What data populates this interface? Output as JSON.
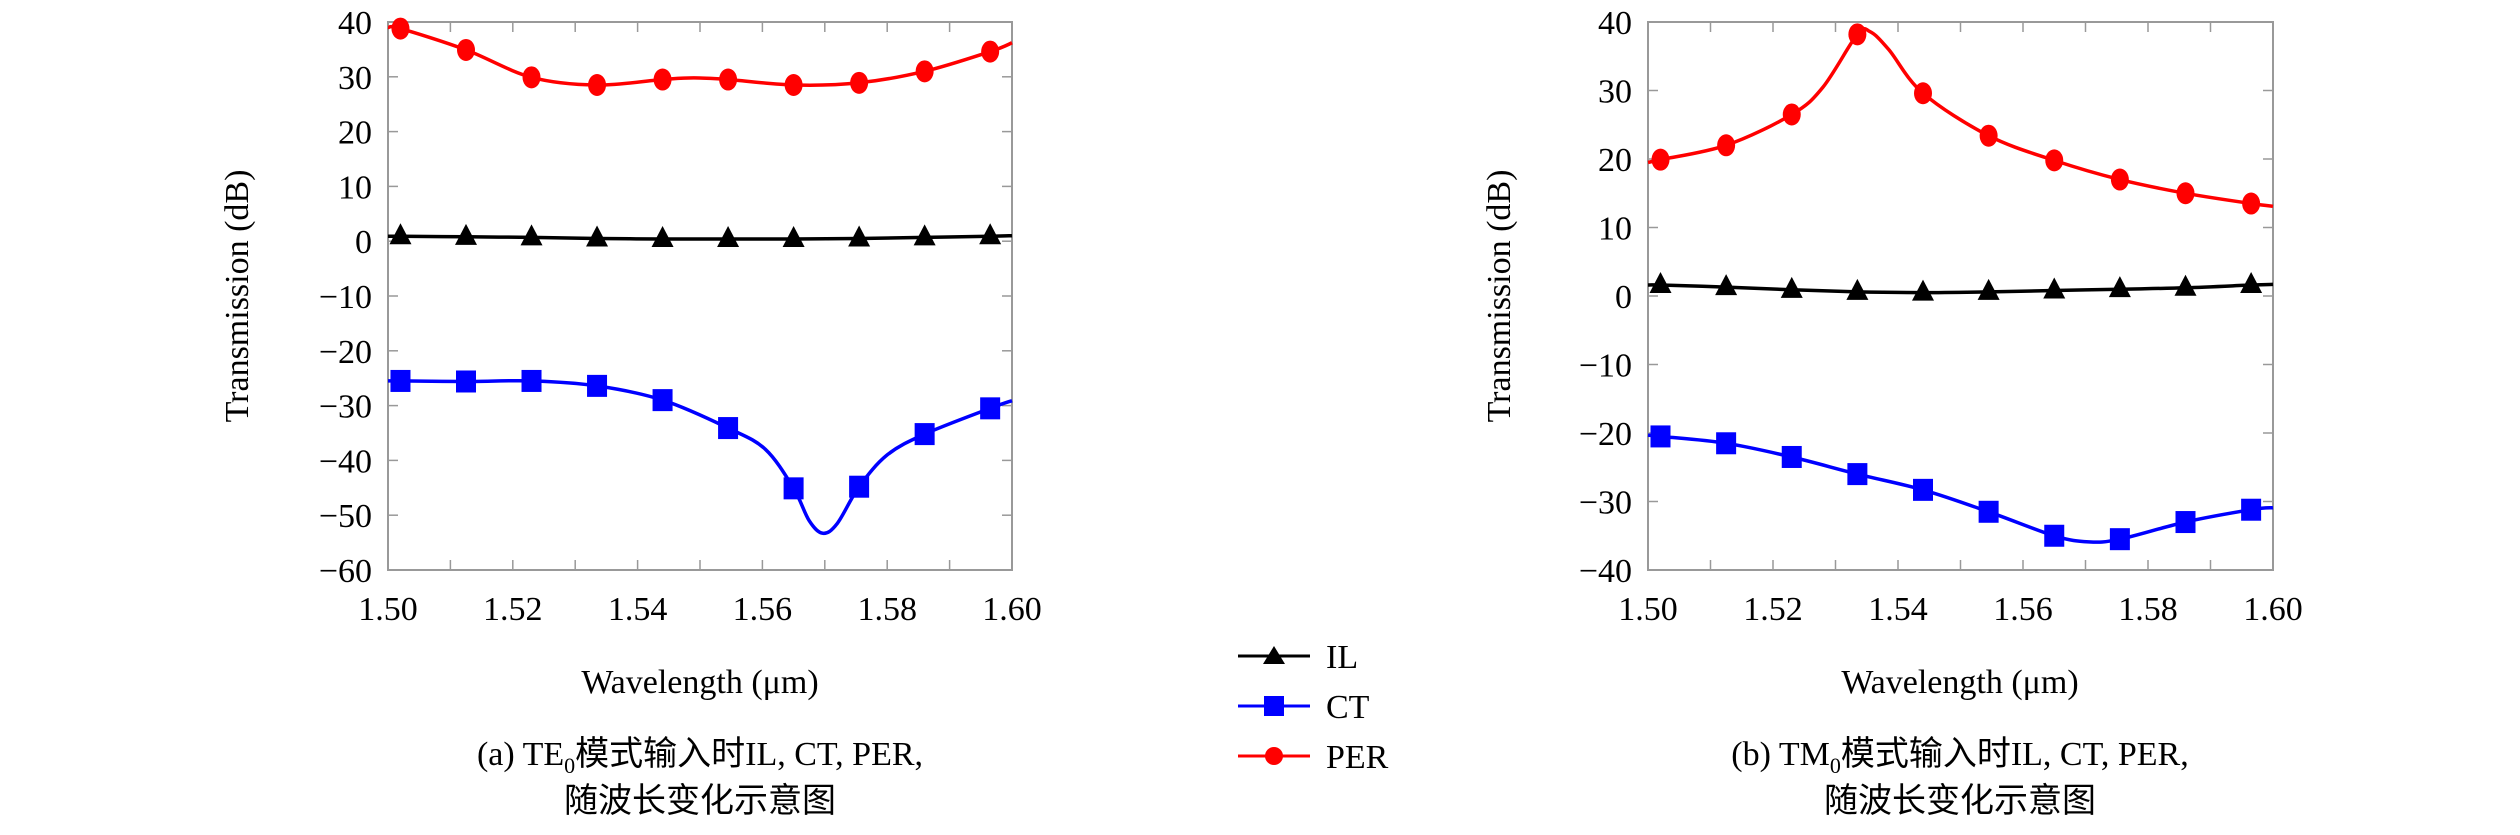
{
  "chart_data": [
    {
      "id": "a",
      "type": "line",
      "title": "",
      "xlabel": "Wavelength (μm)",
      "ylabel": "Transmission (dB)",
      "xlim": [
        1.5,
        1.6
      ],
      "ylim": [
        -60,
        40
      ],
      "xticks": [
        1.5,
        1.52,
        1.54,
        1.56,
        1.58,
        1.6
      ],
      "xtick_labels": [
        "1.50",
        "1.52",
        "1.54",
        "1.56",
        "1.58",
        "1.60"
      ],
      "xminor_step": 0.01,
      "yticks": [
        40,
        30,
        20,
        10,
        0,
        -10,
        -20,
        -30,
        -40,
        -50,
        -60
      ],
      "ytick_labels": [
        "40",
        "30",
        "20",
        "10",
        "0",
        "−10",
        "−20",
        "−30",
        "−40",
        "−50",
        "−60"
      ],
      "grid": false,
      "caption_line1_prefix": "(a) TE",
      "caption_line1_sub": "0",
      "caption_line1_suffix": "模式输入时IL, CT, PER,",
      "caption_line2": "随波长变化示意图",
      "x": [
        1.502,
        1.5125,
        1.523,
        1.5335,
        1.544,
        1.5545,
        1.565,
        1.5755,
        1.586,
        1.5965
      ],
      "series": [
        {
          "name": "IL",
          "color": "#000000",
          "marker": "triangle",
          "values": [
            0.9,
            0.8,
            0.7,
            0.5,
            0.4,
            0.4,
            0.4,
            0.5,
            0.7,
            0.9
          ],
          "curve": [
            [
              1.5,
              0.9
            ],
            [
              1.502,
              0.9
            ],
            [
              1.5125,
              0.8
            ],
            [
              1.523,
              0.7
            ],
            [
              1.5335,
              0.5
            ],
            [
              1.544,
              0.4
            ],
            [
              1.5545,
              0.4
            ],
            [
              1.565,
              0.4
            ],
            [
              1.5755,
              0.5
            ],
            [
              1.586,
              0.7
            ],
            [
              1.5965,
              0.9
            ],
            [
              1.6,
              1.0
            ]
          ]
        },
        {
          "name": "CT",
          "color": "#0000ff",
          "marker": "square",
          "values": [
            -25.5,
            -25.6,
            -25.5,
            -26.4,
            -29.0,
            -34.1,
            -45.1,
            -44.8,
            -35.2,
            -30.5
          ],
          "curve": [
            [
              1.5,
              -25.5
            ],
            [
              1.502,
              -25.5
            ],
            [
              1.5125,
              -25.6
            ],
            [
              1.523,
              -25.5
            ],
            [
              1.5335,
              -26.4
            ],
            [
              1.544,
              -29.0
            ],
            [
              1.5545,
              -34.1
            ],
            [
              1.5605,
              -38.0
            ],
            [
              1.565,
              -45.1
            ],
            [
              1.5675,
              -51.0
            ],
            [
              1.5697,
              -53.3
            ],
            [
              1.572,
              -51.5
            ],
            [
              1.5755,
              -44.8
            ],
            [
              1.58,
              -39.0
            ],
            [
              1.586,
              -35.2
            ],
            [
              1.5965,
              -30.5
            ],
            [
              1.6,
              -29.1
            ]
          ]
        },
        {
          "name": "PER",
          "color": "#ff0000",
          "marker": "circle",
          "values": [
            38.8,
            34.9,
            29.9,
            28.5,
            29.5,
            29.5,
            28.5,
            28.9,
            31.0,
            34.6
          ],
          "curve": [
            [
              1.5,
              39.0
            ],
            [
              1.502,
              38.8
            ],
            [
              1.5125,
              34.9
            ],
            [
              1.523,
              29.9
            ],
            [
              1.5335,
              28.5
            ],
            [
              1.544,
              29.5
            ],
            [
              1.549,
              29.8
            ],
            [
              1.5545,
              29.5
            ],
            [
              1.565,
              28.5
            ],
            [
              1.5755,
              28.9
            ],
            [
              1.586,
              31.0
            ],
            [
              1.5965,
              34.6
            ],
            [
              1.6,
              36.2
            ]
          ]
        }
      ]
    },
    {
      "id": "b",
      "type": "line",
      "title": "",
      "xlabel": "Wavelength (μm)",
      "ylabel": "Transmission (dB)",
      "xlim": [
        1.5,
        1.6
      ],
      "ylim": [
        -40,
        40
      ],
      "xticks": [
        1.5,
        1.52,
        1.54,
        1.56,
        1.58,
        1.6
      ],
      "xtick_labels": [
        "1.50",
        "1.52",
        "1.54",
        "1.56",
        "1.58",
        "1.60"
      ],
      "xminor_step": 0.01,
      "yticks": [
        40,
        30,
        20,
        10,
        0,
        -10,
        -20,
        -30,
        -40
      ],
      "ytick_labels": [
        "40",
        "30",
        "20",
        "10",
        "0",
        "−10",
        "−20",
        "−30",
        "−40"
      ],
      "grid": false,
      "caption_line1_prefix": "(b) TM",
      "caption_line1_sub": "0",
      "caption_line1_suffix": "模式输入时IL, CT, PER,",
      "caption_line2": "随波长变化示意图",
      "x": [
        1.502,
        1.5125,
        1.523,
        1.5335,
        1.544,
        1.5545,
        1.565,
        1.5755,
        1.586,
        1.5965
      ],
      "series": [
        {
          "name": "IL",
          "color": "#000000",
          "marker": "triangle",
          "values": [
            1.6,
            1.3,
            0.9,
            0.6,
            0.5,
            0.6,
            0.8,
            1.0,
            1.2,
            1.6
          ],
          "curve": [
            [
              1.5,
              1.6
            ],
            [
              1.502,
              1.6
            ],
            [
              1.5125,
              1.3
            ],
            [
              1.523,
              0.9
            ],
            [
              1.5335,
              0.6
            ],
            [
              1.544,
              0.5
            ],
            [
              1.5545,
              0.6
            ],
            [
              1.565,
              0.8
            ],
            [
              1.5755,
              1.0
            ],
            [
              1.586,
              1.2
            ],
            [
              1.5965,
              1.6
            ],
            [
              1.6,
              1.7
            ]
          ]
        },
        {
          "name": "CT",
          "color": "#0000ff",
          "marker": "square",
          "values": [
            -20.5,
            -21.5,
            -23.5,
            -26.0,
            -28.3,
            -31.5,
            -35.0,
            -35.5,
            -33.0,
            -31.2
          ],
          "curve": [
            [
              1.5,
              -20.3
            ],
            [
              1.502,
              -20.5
            ],
            [
              1.5125,
              -21.5
            ],
            [
              1.523,
              -23.5
            ],
            [
              1.5335,
              -26.0
            ],
            [
              1.544,
              -28.3
            ],
            [
              1.5545,
              -31.5
            ],
            [
              1.565,
              -35.0
            ],
            [
              1.5705,
              -35.9
            ],
            [
              1.5755,
              -35.5
            ],
            [
              1.586,
              -33.0
            ],
            [
              1.5965,
              -31.2
            ],
            [
              1.6,
              -30.9
            ]
          ]
        },
        {
          "name": "PER",
          "color": "#ff0000",
          "marker": "circle",
          "values": [
            19.9,
            22.0,
            26.5,
            38.2,
            29.6,
            23.4,
            19.8,
            17.0,
            15.0,
            13.5
          ],
          "curve": [
            [
              1.5,
              19.5
            ],
            [
              1.502,
              19.9
            ],
            [
              1.5125,
              22.0
            ],
            [
              1.523,
              26.5
            ],
            [
              1.528,
              30.5
            ],
            [
              1.5335,
              38.2
            ],
            [
              1.5355,
              38.6
            ],
            [
              1.5385,
              36.0
            ],
            [
              1.544,
              29.6
            ],
            [
              1.5545,
              23.4
            ],
            [
              1.565,
              19.8
            ],
            [
              1.5755,
              17.0
            ],
            [
              1.586,
              15.0
            ],
            [
              1.5965,
              13.5
            ],
            [
              1.6,
              13.1
            ]
          ]
        }
      ]
    }
  ],
  "legend": {
    "placement": "bottom-center",
    "items": [
      {
        "name": "IL",
        "color": "#000000",
        "marker": "triangle"
      },
      {
        "name": "CT",
        "color": "#0000ff",
        "marker": "square"
      },
      {
        "name": "PER",
        "color": "#ff0000",
        "marker": "circle"
      }
    ]
  },
  "colors": {
    "axis": "#999999",
    "text": "#000000"
  }
}
